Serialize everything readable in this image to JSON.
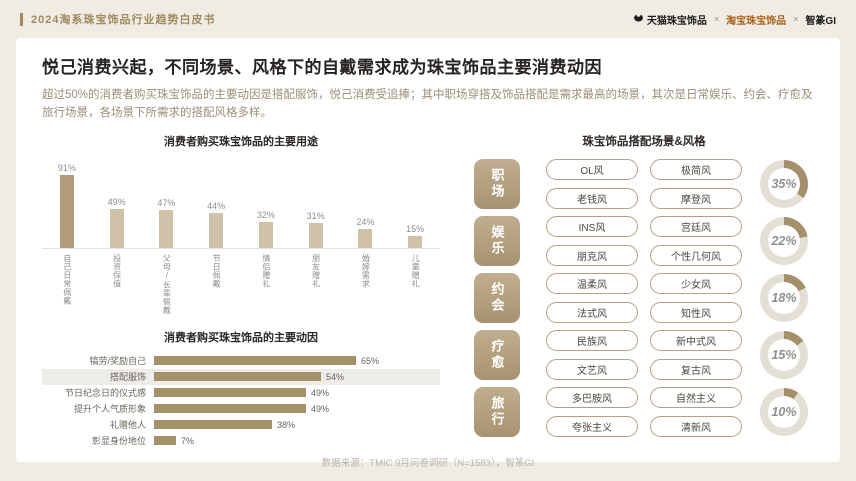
{
  "header": {
    "title": "2024淘系珠宝饰品行业趋势白皮书",
    "logo_tmall": "天猫珠宝饰品",
    "logo_taobao": "淘宝珠宝饰品",
    "logo_zhizhuan": "智篆GI",
    "separator": "×"
  },
  "main": {
    "title": "悦己消费兴起，不同场景、风格下的自戴需求成为珠宝饰品主要消费动因",
    "subtitle": "超过50%的消费者购买珠宝饰品的主要动因是搭配服饰，悦己消费受追捧；其中职场穿搭及饰品搭配是需求最高的场景，其次是日常娱乐、约会、疗愈及旅行场景，各场景下所需求的搭配风格多样。",
    "source": "数据来源：TMIC 9月问卷调研（N=1583），智篆GI"
  },
  "chart_data": [
    {
      "type": "bar",
      "orientation": "vertical",
      "title": "消费者购买珠宝饰品的主要用途",
      "categories": [
        "自己日常佩戴",
        "投资保值",
        "父母/长辈佩戴",
        "节日佩戴",
        "情侣赠礼",
        "朋友赠礼",
        "婚嫁需求",
        "儿童赠礼"
      ],
      "values": [
        91,
        49,
        47,
        44,
        32,
        31,
        24,
        15
      ],
      "unit": "%",
      "ylim": [
        0,
        100
      ],
      "highlight_index": 0,
      "grid": false,
      "legend": false
    },
    {
      "type": "bar",
      "orientation": "horizontal",
      "title": "消费者购买珠宝饰品的主要动因",
      "categories": [
        "犒劳/奖励自己",
        "搭配服饰",
        "节日纪念日的仪式感",
        "提升个人气质形象",
        "礼赠他人",
        "彰显身份地位"
      ],
      "values": [
        65,
        54,
        49,
        49,
        38,
        7
      ],
      "unit": "%",
      "xmax": 65,
      "highlight_index": 1,
      "grid": false,
      "legend": false
    },
    {
      "type": "pie",
      "subtype": "donut-group",
      "title": "珠宝饰品搭配场景&风格",
      "unit": "%",
      "rows": [
        {
          "scene": "职场",
          "styles": [
            "OL风",
            "极简风",
            "老钱风",
            "摩登风"
          ],
          "percent": 35
        },
        {
          "scene": "娱乐",
          "styles": [
            "INS风",
            "宫廷风",
            "朋克风",
            "个性几何风"
          ],
          "percent": 22
        },
        {
          "scene": "约会",
          "styles": [
            "温柔风",
            "少女风",
            "法式风",
            "知性风"
          ],
          "percent": 18
        },
        {
          "scene": "疗愈",
          "styles": [
            "民族风",
            "新中式风",
            "文艺风",
            "复古风"
          ],
          "percent": 15
        },
        {
          "scene": "旅行",
          "styles": [
            "多巴胺风",
            "自然主义",
            "夸张主义",
            "清新风"
          ],
          "percent": 10
        }
      ]
    }
  ],
  "colors": {
    "accent": "#a5906c",
    "bar_light": "#cfc2a8",
    "bar_dark": "#b29c79",
    "donut_rest": "#e4dfd4",
    "scene_bg1": "#bfae8f",
    "scene_bg2": "#a79371",
    "gold": "#a08a5f",
    "taobao": "#a8611c"
  }
}
